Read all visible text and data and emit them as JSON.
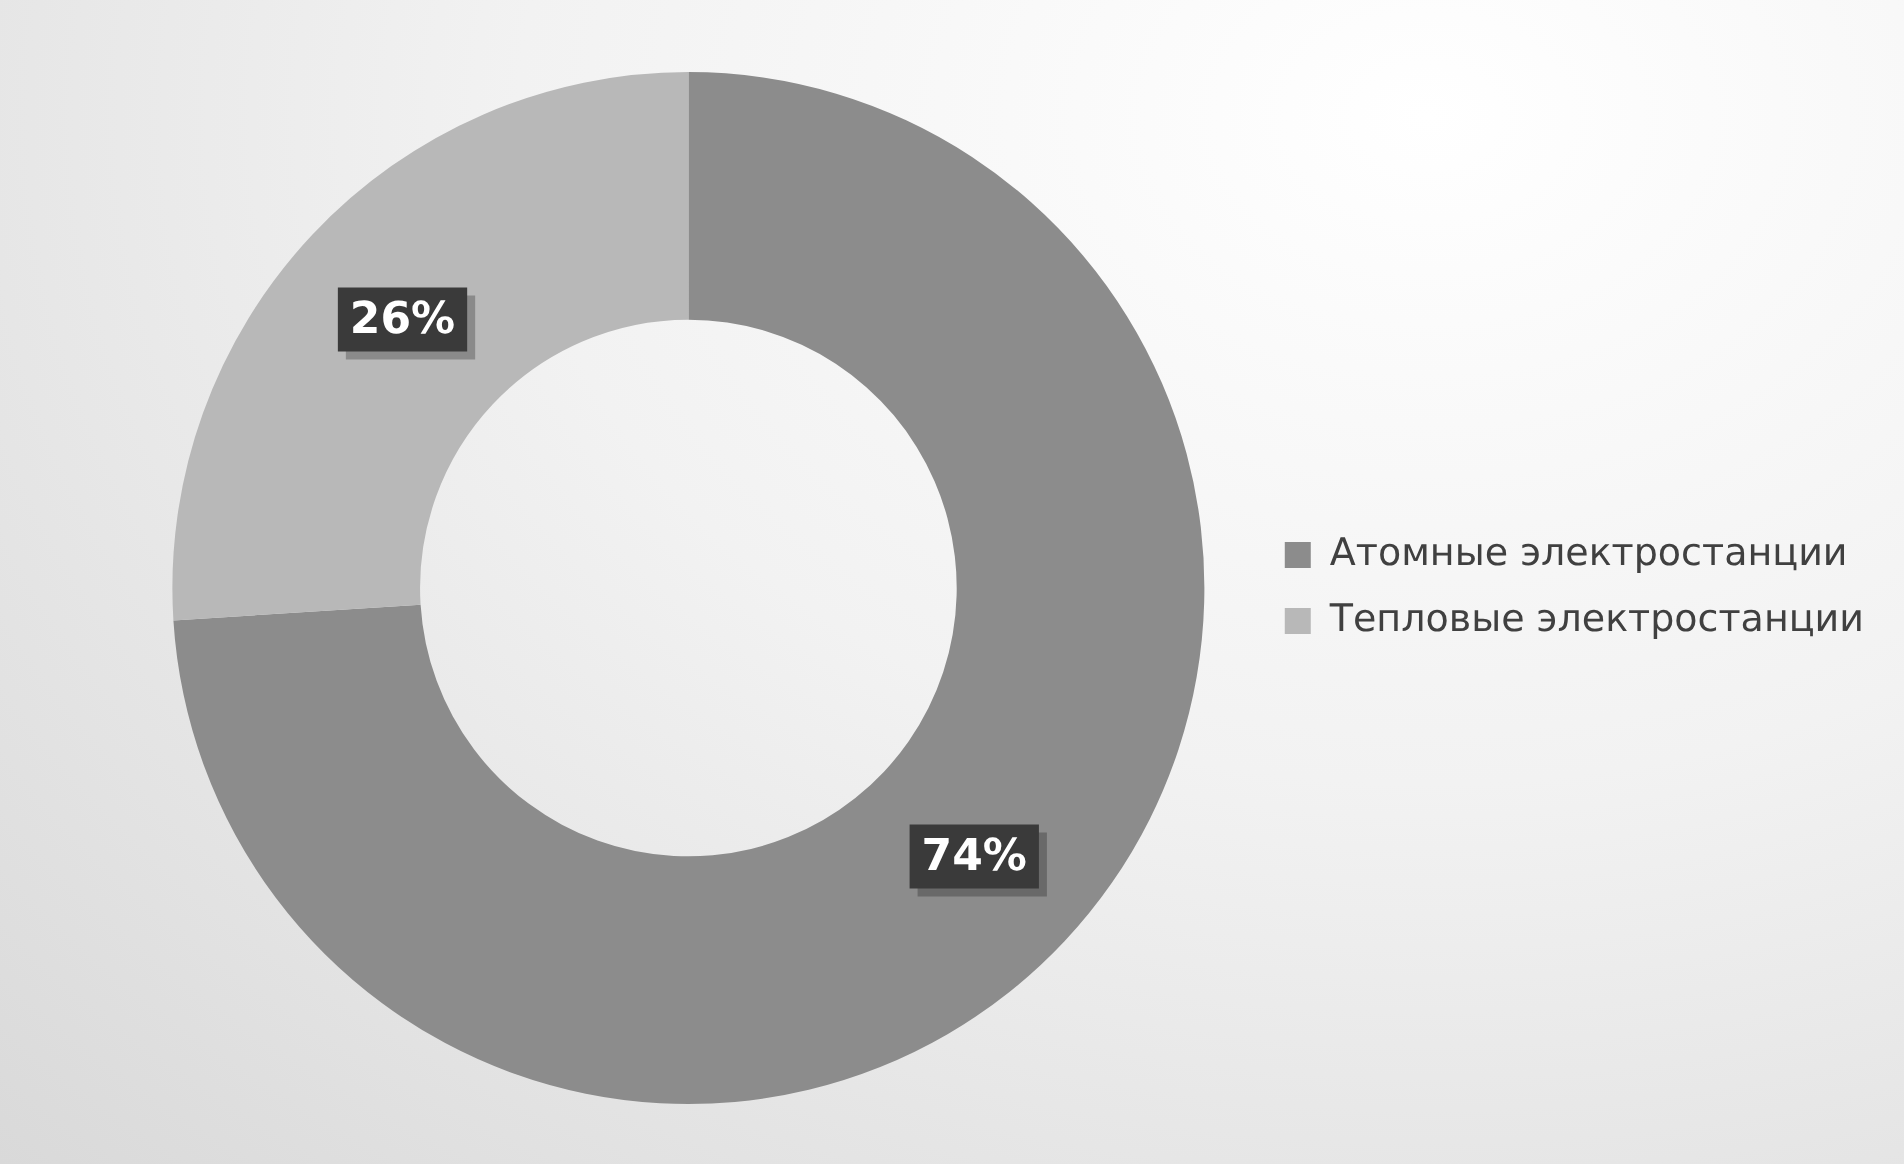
{
  "chart_data": {
    "type": "donut",
    "categories": [
      "Атомные электростанции",
      "Тепловые электростанции"
    ],
    "values": [
      74,
      26
    ],
    "colors": [
      "#8c8c8c",
      "#b8b8b8"
    ],
    "value_labels": [
      "74%",
      "26%"
    ],
    "legend": "right"
  }
}
